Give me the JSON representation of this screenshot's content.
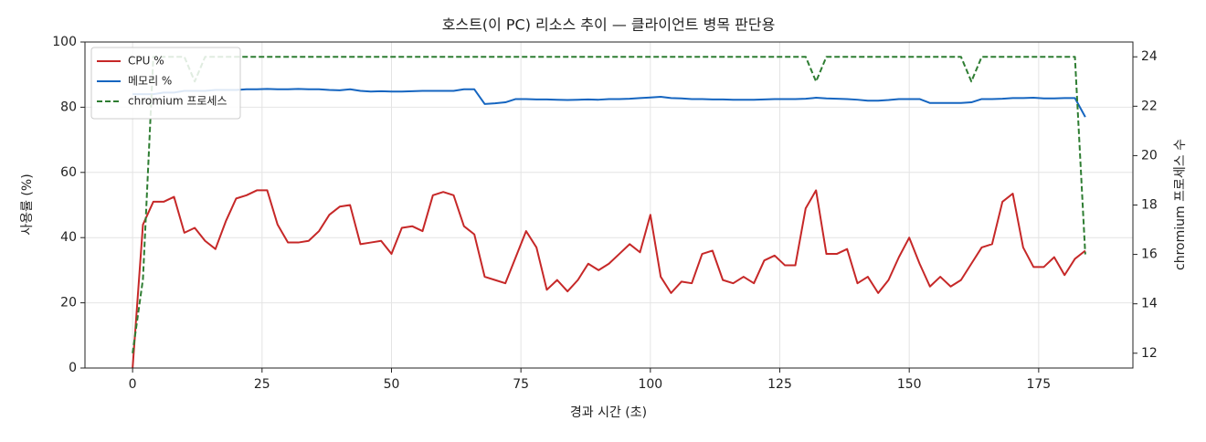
{
  "chart_data": {
    "type": "line",
    "title": "호스트(이 PC) 리소스 추이 — 클라이언트 병목 판단용",
    "xlabel": "경과 시간 (초)",
    "ylabel": "사용률 (%)",
    "y2label": "chromium 프로세스 수",
    "x": [
      0,
      2,
      4,
      6,
      8,
      10,
      12,
      14,
      16,
      18,
      20,
      22,
      24,
      26,
      28,
      30,
      32,
      34,
      36,
      38,
      40,
      42,
      44,
      46,
      48,
      50,
      52,
      54,
      56,
      58,
      60,
      62,
      64,
      66,
      68,
      70,
      72,
      74,
      76,
      78,
      80,
      82,
      84,
      86,
      88,
      90,
      92,
      94,
      96,
      98,
      100,
      102,
      104,
      106,
      108,
      110,
      112,
      114,
      116,
      118,
      120,
      122,
      124,
      126,
      128,
      130,
      132,
      134,
      136,
      138,
      140,
      142,
      144,
      146,
      148,
      150,
      152,
      154,
      156,
      158,
      160,
      162,
      164,
      166,
      168,
      170,
      172,
      174,
      176,
      178,
      180,
      182,
      184
    ],
    "series": [
      {
        "name": "CPU %",
        "color": "#c62828",
        "dash": false,
        "values": [
          0,
          44,
          51,
          51,
          52.5,
          41.5,
          43,
          39,
          36.5,
          45,
          52,
          53,
          54.5,
          54.5,
          44,
          38.5,
          38.5,
          39,
          42,
          47,
          49.5,
          50,
          38,
          38.5,
          39,
          35,
          43,
          43.5,
          42,
          53,
          54,
          53,
          43.5,
          41,
          28,
          27,
          26,
          34,
          42,
          37,
          24,
          27,
          23.5,
          27,
          32,
          30,
          32,
          35,
          38,
          35.5,
          47,
          28,
          23,
          26.5,
          26,
          35,
          36,
          27,
          26,
          28,
          26,
          33,
          34.5,
          31.5,
          31.5,
          49,
          54.5,
          35,
          35,
          36.5,
          26,
          28,
          23,
          27,
          34,
          40,
          32,
          25,
          28,
          25,
          27,
          32,
          37,
          38,
          51,
          53.5,
          37,
          31,
          31,
          34,
          28.5,
          33.5,
          36
        ]
      },
      {
        "name": "메모리 %",
        "color": "#1565c0",
        "dash": false,
        "values": [
          84,
          84,
          84,
          84.5,
          84.5,
          85,
          85,
          85,
          85.3,
          85.3,
          85.3,
          85.5,
          85.5,
          85.6,
          85.5,
          85.5,
          85.6,
          85.5,
          85.5,
          85.3,
          85.2,
          85.5,
          85,
          84.8,
          84.9,
          84.8,
          84.8,
          84.9,
          85,
          85,
          85,
          85,
          85.5,
          85.5,
          81,
          81.2,
          81.5,
          82.5,
          82.5,
          82.4,
          82.4,
          82.3,
          82.2,
          82.3,
          82.4,
          82.3,
          82.5,
          82.5,
          82.6,
          82.8,
          83,
          83.2,
          82.8,
          82.7,
          82.5,
          82.5,
          82.4,
          82.4,
          82.3,
          82.3,
          82.3,
          82.4,
          82.5,
          82.5,
          82.5,
          82.6,
          82.9,
          82.7,
          82.6,
          82.5,
          82.3,
          82,
          82,
          82.2,
          82.5,
          82.5,
          82.5,
          81.3,
          81.3,
          81.3,
          81.3,
          81.5,
          82.5,
          82.5,
          82.6,
          82.8,
          82.8,
          82.9,
          82.7,
          82.7,
          82.8,
          82.8,
          77
        ]
      },
      {
        "name": "chromium 프로세스",
        "color": "#2e7d32",
        "dash": true,
        "axis": "y2",
        "values": [
          12,
          15,
          24,
          24,
          24,
          24,
          23,
          24,
          24,
          24,
          24,
          24,
          24,
          24,
          24,
          24,
          24,
          24,
          24,
          24,
          24,
          24,
          24,
          24,
          24,
          24,
          24,
          24,
          24,
          24,
          24,
          24,
          24,
          24,
          24,
          24,
          24,
          24,
          24,
          24,
          24,
          24,
          24,
          24,
          24,
          24,
          24,
          24,
          24,
          24,
          24,
          24,
          24,
          24,
          24,
          24,
          24,
          24,
          24,
          24,
          24,
          24,
          24,
          24,
          24,
          24,
          23,
          24,
          24,
          24,
          24,
          24,
          24,
          24,
          24,
          24,
          24,
          24,
          24,
          24,
          24,
          23,
          24,
          24,
          24,
          24,
          24,
          24,
          24,
          24,
          24,
          24,
          16
        ]
      }
    ],
    "xlim": [
      -9.2,
      193.2
    ],
    "xticks": [
      0,
      25,
      50,
      75,
      100,
      125,
      150,
      175
    ],
    "ylim": [
      0,
      100
    ],
    "yticks": [
      0,
      20,
      40,
      60,
      80,
      100
    ],
    "y2lim": [
      11.4,
      24.6
    ],
    "y2ticks": [
      12,
      14,
      16,
      18,
      20,
      22,
      24
    ],
    "grid": true,
    "legend": "upper-left"
  }
}
